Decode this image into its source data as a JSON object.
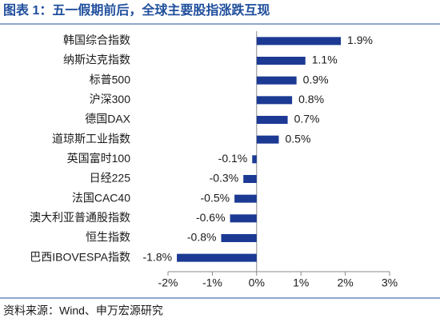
{
  "chart_data": {
    "type": "hbar",
    "title": "图表 1：五一假期前后，全球主要股指涨跌互现",
    "source": "资料来源：Wind、申万宏源研究",
    "categories": [
      "韩国综合指数",
      "纳斯达克指数",
      "标普500",
      "沪深300",
      "德国DAX",
      "道琼斯工业指数",
      "英国富时100",
      "日经225",
      "法国CAC40",
      "澳大利亚普通股指数",
      "恒生指数",
      "巴西IBOVESPA指数"
    ],
    "values": [
      1.9,
      1.1,
      0.9,
      0.8,
      0.7,
      0.5,
      -0.1,
      -0.3,
      -0.5,
      -0.6,
      -0.8,
      -1.8
    ],
    "value_labels": [
      "1.9%",
      "1.1%",
      "0.9%",
      "0.8%",
      "0.7%",
      "0.5%",
      "-0.1%",
      "-0.3%",
      "-0.5%",
      "-0.6%",
      "-0.8%",
      "-1.8%"
    ],
    "color": "#1c3a94",
    "xlim": [
      -2,
      3
    ],
    "xticks": [
      {
        "value": -2,
        "label": "-2%"
      },
      {
        "value": -1,
        "label": "-1%"
      },
      {
        "value": 0,
        "label": "0%"
      },
      {
        "value": 1,
        "label": "1%"
      },
      {
        "value": 2,
        "label": "2%"
      },
      {
        "value": 3,
        "label": "3%"
      }
    ]
  }
}
